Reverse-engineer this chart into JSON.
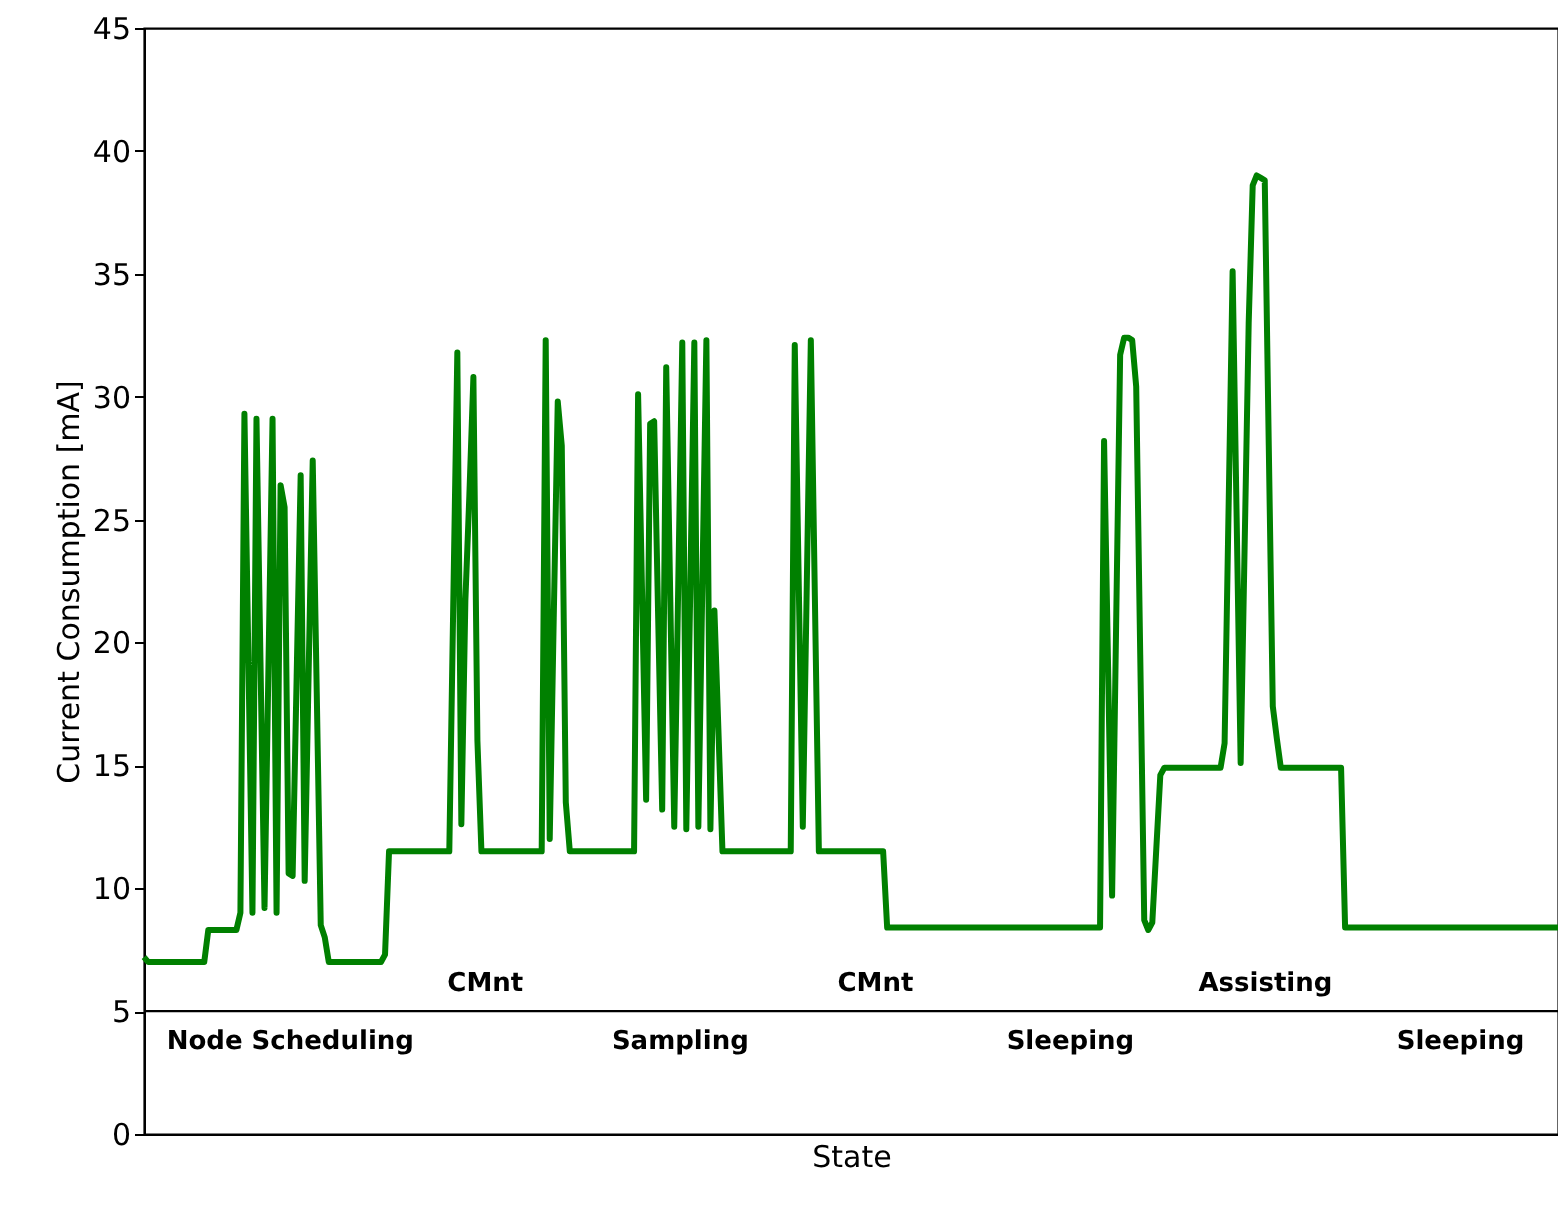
{
  "chart_data": {
    "type": "line",
    "xlabel": "State",
    "ylabel": "Current Consumption [mA]",
    "categories": [
      null,
      null,
      null,
      null,
      null,
      null,
      null,
      null,
      null,
      null,
      null,
      null,
      null,
      null,
      null,
      null,
      null,
      null,
      null,
      null,
      null,
      null,
      null,
      null,
      null,
      null,
      null,
      null,
      null,
      null,
      null,
      null,
      null,
      null,
      null,
      null,
      null,
      null,
      null,
      null,
      null,
      null,
      null,
      null,
      null,
      null,
      null,
      null,
      null,
      null,
      null,
      null,
      null,
      null,
      null,
      null,
      null,
      null,
      null,
      null,
      null,
      null,
      null,
      null,
      null,
      null,
      null,
      null,
      null,
      null,
      null,
      null,
      null,
      null,
      null,
      null,
      null,
      null,
      null,
      null,
      null,
      null,
      null,
      null,
      null,
      null,
      null,
      null,
      null,
      null,
      null,
      null,
      null,
      null,
      null,
      null,
      null,
      null,
      null,
      null,
      null,
      null,
      null,
      null,
      null,
      null,
      null,
      null,
      null,
      null,
      null,
      null,
      null,
      null,
      null,
      null,
      null,
      null,
      null,
      null,
      null,
      null,
      null,
      null,
      null,
      null,
      null,
      null,
      null,
      null,
      null,
      null,
      null,
      null,
      null,
      null,
      null,
      null,
      null,
      null,
      null,
      null,
      null,
      null,
      null,
      null,
      null,
      null,
      null,
      null,
      null,
      null,
      null,
      null,
      null,
      null,
      null,
      null,
      null,
      null,
      null,
      null,
      null,
      null,
      null,
      null,
      null,
      null,
      null,
      null,
      null,
      null,
      null,
      null,
      null,
      null,
      null,
      null,
      null,
      null,
      null,
      null,
      null,
      null,
      null,
      null,
      null,
      null,
      null,
      null,
      null,
      null,
      null,
      null,
      null,
      null,
      null,
      null,
      null,
      null,
      null,
      null,
      null,
      null,
      null,
      null,
      null,
      null,
      null,
      null,
      null,
      null,
      null,
      null,
      null,
      null,
      null,
      null,
      null,
      null,
      null,
      null,
      null,
      null,
      null,
      null,
      null,
      null,
      null,
      null,
      null,
      null,
      null,
      null,
      null,
      null,
      null,
      null,
      null,
      null,
      null,
      null,
      null,
      null,
      null,
      null,
      null,
      null,
      null,
      null,
      null,
      null,
      null,
      null,
      null,
      null,
      null,
      null,
      null,
      null,
      null,
      null,
      null,
      null,
      null,
      null,
      null,
      null,
      null,
      null,
      null,
      null,
      null,
      null,
      null,
      null,
      null,
      null,
      null,
      null,
      null,
      null,
      null,
      null,
      null,
      null,
      null,
      null,
      null,
      null,
      null,
      null,
      null,
      null,
      null,
      null,
      null,
      null,
      null,
      null,
      null,
      null,
      null,
      null,
      null,
      null,
      null,
      null,
      null,
      null,
      null,
      null,
      null,
      null,
      null,
      null,
      null,
      null,
      null,
      null,
      null,
      null,
      null,
      null,
      null,
      null,
      null,
      null,
      null,
      null,
      null,
      null,
      null,
      null,
      null,
      null,
      null,
      null,
      null,
      null,
      null,
      null,
      null,
      null,
      null,
      null,
      null,
      null,
      null,
      null,
      null,
      null,
      null
    ],
    "series": [
      {
        "color": "#008000",
        "values": [
          7.2,
          7.0,
          7.0,
          7.0,
          7.0,
          7.0,
          7.0,
          7.0,
          7.0,
          7.0,
          7.0,
          7.0,
          7.0,
          7.0,
          7.0,
          7.0,
          8.3,
          8.3,
          8.3,
          8.3,
          8.3,
          8.3,
          8.3,
          8.3,
          9.0,
          29.3,
          19.2,
          9.0,
          29.1,
          19.2,
          9.2,
          19.2,
          29.1,
          9.0,
          26.4,
          25.5,
          10.6,
          10.5,
          18.6,
          26.8,
          10.3,
          18.9,
          27.4,
          18.0,
          8.5,
          8.0,
          7.0,
          7.0,
          7.0,
          7.0,
          7.0,
          7.0,
          7.0,
          7.0,
          7.0,
          7.0,
          7.0,
          7.0,
          7.0,
          7.0,
          7.3,
          11.5,
          11.5,
          11.5,
          11.5,
          11.5,
          11.5,
          11.5,
          11.5,
          11.5,
          11.5,
          11.5,
          11.5,
          11.5,
          11.5,
          11.5,
          11.5,
          21.7,
          31.8,
          12.6,
          21.7,
          26,
          30.8,
          16.0,
          11.5,
          11.5,
          11.5,
          11.5,
          11.5,
          11.5,
          11.5,
          11.5,
          11.5,
          11.5,
          11.5,
          11.5,
          11.5,
          11.5,
          11.5,
          11.5,
          32.3,
          12.0,
          21,
          29.8,
          28.0,
          13.5,
          11.5,
          11.5,
          11.5,
          11.5,
          11.5,
          11.5,
          11.5,
          11.5,
          11.5,
          11.5,
          11.5,
          11.5,
          11.5,
          11.5,
          11.5,
          11.5,
          11.5,
          30.1,
          21.9,
          13.6,
          28.9,
          29.0,
          21,
          13.2,
          31.2,
          21.9,
          12.5,
          22.4,
          32.2,
          12.4,
          22.3,
          32.2,
          12.5,
          22.4,
          32.3,
          12.4,
          21.3,
          16.4,
          11.5,
          11.5,
          11.5,
          11.5,
          11.5,
          11.5,
          11.5,
          11.5,
          11.5,
          11.5,
          11.5,
          11.5,
          11.5,
          11.5,
          11.5,
          11.5,
          11.5,
          11.5,
          32.1,
          22.3,
          12.5,
          22.4,
          32.3,
          21.9,
          11.5,
          11.5,
          11.5,
          11.5,
          11.5,
          11.5,
          11.5,
          11.5,
          11.5,
          11.5,
          11.5,
          11.5,
          11.5,
          11.5,
          11.5,
          11.5,
          11.5,
          8.4,
          8.4,
          8.4,
          8.4,
          8.4,
          8.4,
          8.4,
          8.4,
          8.4,
          8.4,
          8.4,
          8.4,
          8.4,
          8.4,
          8.4,
          8.4,
          8.4,
          8.4,
          8.4,
          8.4,
          8.4,
          8.4,
          8.4,
          8.4,
          8.4,
          8.4,
          8.4,
          8.4,
          8.4,
          8.4,
          8.4,
          8.4,
          8.4,
          8.4,
          8.4,
          8.4,
          8.4,
          8.4,
          8.4,
          8.4,
          8.4,
          8.4,
          8.4,
          8.4,
          8.4,
          8.4,
          8.4,
          8.4,
          8.4,
          8.4,
          8.4,
          8.4,
          8.4,
          8.4,
          28.2,
          19,
          9.7,
          20.7,
          31.7,
          32.4,
          32.4,
          32.3,
          30.4,
          19.5,
          8.7,
          8.3,
          8.6,
          11.6,
          14.6,
          14.9,
          14.9,
          14.9,
          14.9,
          14.9,
          14.9,
          14.9,
          14.9,
          14.9,
          14.9,
          14.9,
          14.9,
          14.9,
          14.9,
          14.9,
          15.9,
          25.5,
          35.1,
          25.1,
          15.1,
          24,
          33.0,
          38.6,
          39.0,
          38.9,
          38.8,
          28,
          17.4,
          16.1,
          14.9,
          14.9,
          14.9,
          14.9,
          14.9,
          14.9,
          14.9,
          14.9,
          14.9,
          14.9,
          14.9,
          14.9,
          14.9,
          14.9,
          14.9,
          14.9,
          8.4,
          8.4,
          8.4,
          8.4,
          8.4,
          8.4,
          8.4,
          8.4,
          8.4,
          8.4,
          8.4,
          8.4,
          8.4,
          8.4,
          8.4,
          8.4,
          8.4,
          8.4,
          8.4,
          8.4,
          8.4,
          8.4,
          8.4,
          8.4,
          8.4,
          8.4,
          8.4,
          8.4,
          8.4,
          8.4,
          8.4,
          8.4,
          8.4,
          8.4,
          8.4,
          8.4,
          8.4,
          8.4,
          8.4,
          8.4,
          8.4,
          8.4,
          8.4,
          8.4,
          8.4,
          8.4,
          8.4,
          8.4,
          8.4,
          8.4,
          8.4,
          8.4,
          8.4,
          8.4
        ]
      }
    ],
    "ylim": [
      0,
      45
    ],
    "yticks": [
      0,
      5,
      10,
      15,
      20,
      25,
      30,
      35,
      40,
      45
    ],
    "tick_labels": "y",
    "grid": false,
    "line_style": "solid",
    "marker": "none",
    "ref_lines": [
      {
        "axis": "y",
        "value": 5,
        "color": "#000000"
      }
    ],
    "annotations": [
      "Node Scheduling",
      "CMnt",
      "Sampling",
      "CMnt",
      "Sleeping",
      "Assisting",
      "Sleeping"
    ]
  }
}
